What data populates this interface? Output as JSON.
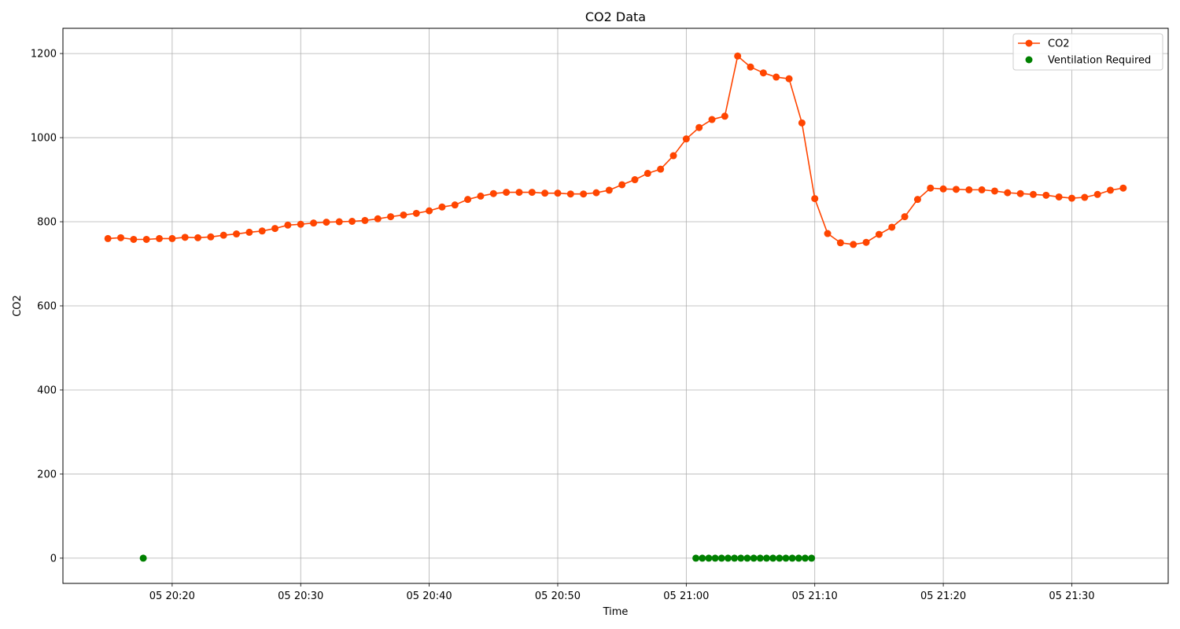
{
  "chart_data": {
    "type": "line",
    "title": "CO2 Data",
    "xlabel": "Time",
    "ylabel": "CO2",
    "x_range": [
      "05 20:11:30",
      "05 21:37:30"
    ],
    "ylim": [
      -60,
      1260
    ],
    "grid": true,
    "legend_position": "top-right",
    "x_ticks": [
      "05 20:20",
      "05 20:30",
      "05 20:40",
      "05 20:50",
      "05 21:00",
      "05 21:10",
      "05 21:20",
      "05 21:30"
    ],
    "y_ticks": [
      0,
      200,
      400,
      600,
      800,
      1000,
      1200
    ],
    "series": [
      {
        "name": "CO2",
        "color": "#ff4500",
        "style": "line-marker",
        "x": [
          "05 20:15",
          "05 20:16",
          "05 20:17",
          "05 20:18",
          "05 20:19",
          "05 20:20",
          "05 20:21",
          "05 20:22",
          "05 20:23",
          "05 20:24",
          "05 20:25",
          "05 20:26",
          "05 20:27",
          "05 20:28",
          "05 20:29",
          "05 20:30",
          "05 20:31",
          "05 20:32",
          "05 20:33",
          "05 20:34",
          "05 20:35",
          "05 20:36",
          "05 20:37",
          "05 20:38",
          "05 20:39",
          "05 20:40",
          "05 20:41",
          "05 20:42",
          "05 20:43",
          "05 20:44",
          "05 20:45",
          "05 20:46",
          "05 20:47",
          "05 20:48",
          "05 20:49",
          "05 20:50",
          "05 20:51",
          "05 20:52",
          "05 20:53",
          "05 20:54",
          "05 20:55",
          "05 20:56",
          "05 20:57",
          "05 20:58",
          "05 20:59",
          "05 21:00",
          "05 21:01",
          "05 21:02",
          "05 21:03",
          "05 21:04",
          "05 21:05",
          "05 21:06",
          "05 21:07",
          "05 21:08",
          "05 21:09",
          "05 21:10",
          "05 21:11",
          "05 21:12",
          "05 21:13",
          "05 21:14",
          "05 21:15",
          "05 21:16",
          "05 21:17",
          "05 21:18",
          "05 21:19",
          "05 21:20",
          "05 21:21",
          "05 21:22",
          "05 21:23",
          "05 21:24",
          "05 21:25",
          "05 21:26",
          "05 21:27",
          "05 21:28",
          "05 21:29",
          "05 21:30",
          "05 21:31",
          "05 21:32",
          "05 21:33",
          "05 21:34"
        ],
        "values": [
          760,
          762,
          758,
          758,
          760,
          760,
          763,
          762,
          764,
          768,
          771,
          775,
          778,
          784,
          792,
          794,
          797,
          799,
          800,
          801,
          803,
          807,
          812,
          816,
          820,
          826,
          835,
          840,
          853,
          861,
          867,
          870,
          870,
          870,
          868,
          868,
          866,
          866,
          869,
          875,
          888,
          900,
          915,
          925,
          957,
          997,
          1024,
          1043,
          1051,
          1194,
          1168,
          1154,
          1144,
          1140,
          1035,
          855,
          772,
          750,
          746,
          751,
          770,
          787,
          812,
          853,
          880,
          878,
          877,
          876,
          876,
          873,
          869,
          867,
          865,
          863,
          859,
          856,
          858,
          865,
          875,
          880
        ]
      },
      {
        "name": "Ventilation Required",
        "color": "#008000",
        "style": "marker",
        "x": [
          "05 20:17:45",
          "05 21:00:45",
          "05 21:01:15",
          "05 21:01:45",
          "05 21:02:15",
          "05 21:02:45",
          "05 21:03:15",
          "05 21:03:45",
          "05 21:04:15",
          "05 21:04:45",
          "05 21:05:15",
          "05 21:05:45",
          "05 21:06:15",
          "05 21:06:45",
          "05 21:07:15",
          "05 21:07:45",
          "05 21:08:15",
          "05 21:08:45",
          "05 21:09:15",
          "05 21:09:45"
        ],
        "values": [
          0,
          0,
          0,
          0,
          0,
          0,
          0,
          0,
          0,
          0,
          0,
          0,
          0,
          0,
          0,
          0,
          0,
          0,
          0,
          0
        ]
      }
    ]
  }
}
